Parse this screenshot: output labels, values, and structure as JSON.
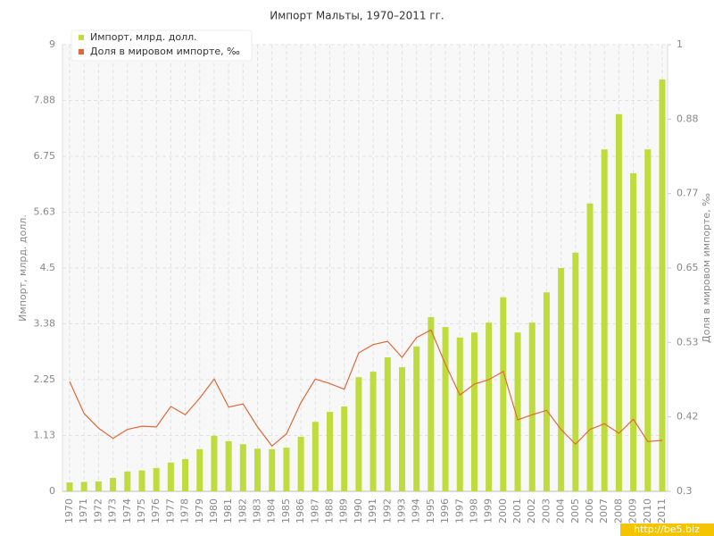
{
  "chart_data": {
    "type": "combo",
    "title": "Импорт Мальты, 1970–2011 гг.",
    "y_label": "Импорт, млрд. долл.",
    "y2_label": "Доля в мировом импорте, ‰",
    "watermark": "http://be5.biz",
    "categories": [
      "1970",
      "1971",
      "1972",
      "1973",
      "1974",
      "1975",
      "1976",
      "1977",
      "1978",
      "1979",
      "1980",
      "1981",
      "1982",
      "1983",
      "1984",
      "1985",
      "1986",
      "1987",
      "1988",
      "1989",
      "1990",
      "1991",
      "1992",
      "1993",
      "1994",
      "1995",
      "1996",
      "1997",
      "1998",
      "1999",
      "2000",
      "2001",
      "2002",
      "2003",
      "2004",
      "2005",
      "2006",
      "2007",
      "2008",
      "2009",
      "2010",
      "2011"
    ],
    "series": [
      {
        "name": "Импорт, млрд. долл.",
        "type": "bar",
        "color": "#bfdc3e",
        "values": [
          0.18,
          0.19,
          0.2,
          0.27,
          0.4,
          0.42,
          0.47,
          0.58,
          0.65,
          0.85,
          1.12,
          1.01,
          0.95,
          0.86,
          0.85,
          0.88,
          1.1,
          1.4,
          1.6,
          1.71,
          2.3,
          2.41,
          2.7,
          2.5,
          2.92,
          3.51,
          3.31,
          3.1,
          3.2,
          3.4,
          3.91,
          3.2,
          3.4,
          4.01,
          4.5,
          4.81,
          5.8,
          6.89,
          7.6,
          6.41,
          6.89,
          8.3
        ]
      },
      {
        "name": "Доля в мировом импорте, ‰",
        "type": "line",
        "axis": "y2",
        "color": "#e0683a",
        "values": [
          0.472,
          0.422,
          0.399,
          0.383,
          0.397,
          0.402,
          0.401,
          0.433,
          0.42,
          0.446,
          0.476,
          0.432,
          0.437,
          0.401,
          0.371,
          0.39,
          0.439,
          0.476,
          0.469,
          0.46,
          0.517,
          0.53,
          0.535,
          0.51,
          0.541,
          0.553,
          0.499,
          0.451,
          0.468,
          0.475,
          0.488,
          0.412,
          0.42,
          0.427,
          0.397,
          0.374,
          0.397,
          0.406,
          0.391,
          0.413,
          0.378,
          0.38
        ]
      }
    ],
    "ylim": [
      0,
      9
    ],
    "yticks": [
      0,
      {
        "value": 1.125,
        "label": "1.13"
      },
      2.25,
      {
        "value": 3.375,
        "label": "3.38"
      },
      4.5,
      {
        "value": 5.625,
        "label": "5.63"
      },
      6.75,
      {
        "value": 7.875,
        "label": "7.88"
      },
      9
    ],
    "y2lim": [
      0.3,
      1
    ],
    "y2ticks": [
      0.3,
      {
        "value": 0.41667,
        "label": "0.42"
      },
      {
        "value": 0.53333,
        "label": "0.53"
      },
      0.65,
      {
        "value": 0.76667,
        "label": "0.77"
      },
      {
        "value": 0.88333,
        "label": "0.88"
      },
      1
    ],
    "grid": true,
    "legend": "top-left"
  }
}
